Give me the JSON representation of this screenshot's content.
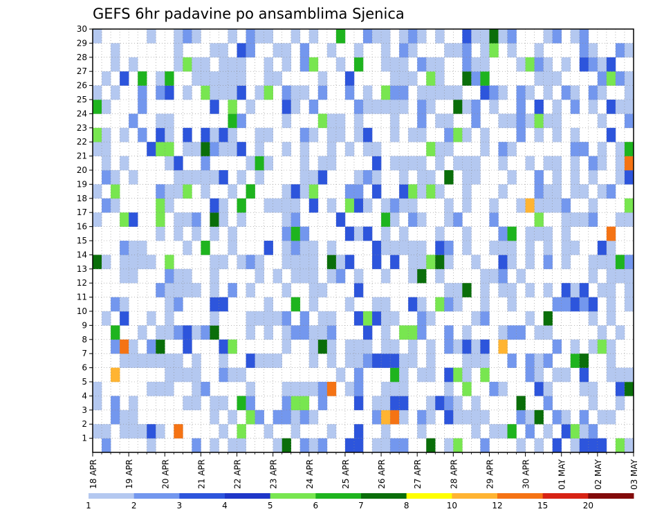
{
  "chart_data": {
    "type": "heatmap",
    "title": "GEFS 6hr padavine po ansamblima Sjenica",
    "x_tick_labels": [
      "18 APR",
      "19 APR",
      "20 APR",
      "21 APR",
      "22 APR",
      "23 APR",
      "24 APR",
      "25 APR",
      "26 APR",
      "27 APR",
      "28 APR",
      "29 APR",
      "30 APR",
      "01 MAY",
      "02 MAY",
      "03 MAY"
    ],
    "x_steps_per_day": 4,
    "y_tick_labels": [
      "1",
      "2",
      "3",
      "4",
      "5",
      "6",
      "7",
      "8",
      "9",
      "10",
      "11",
      "12",
      "13",
      "14",
      "15",
      "16",
      "17",
      "18",
      "19",
      "20",
      "21",
      "22",
      "23",
      "24",
      "25",
      "26",
      "27",
      "28",
      "29",
      "30"
    ],
    "grid": true,
    "legend_position": "bottom",
    "colorbar": {
      "labels": [
        "1",
        "2",
        "3",
        "4",
        "5",
        "6",
        "7",
        "8",
        "10",
        "12",
        "15",
        "20"
      ],
      "colors": [
        "#b4c8f0",
        "#7397ee",
        "#2d55dc",
        "#1e36c8",
        "#78e650",
        "#1eb41e",
        "#0a6e0a",
        "#ffff00",
        "#ffb432",
        "#f57314",
        "#d72314",
        "#820a0a"
      ]
    },
    "cells": [
      {
        "member": 1,
        "values": [
          [
            0,
            2
          ],
          [
            1,
            1
          ],
          [
            3,
            1
          ],
          [
            5,
            1
          ],
          [
            6,
            1
          ],
          [
            7,
            1
          ],
          [
            8,
            1
          ],
          [
            11,
            1
          ],
          [
            12,
            1
          ],
          [
            13,
            1
          ],
          [
            17,
            1
          ],
          [
            18,
            1
          ],
          [
            19,
            1
          ],
          [
            21,
            1
          ],
          [
            22,
            1
          ],
          [
            24,
            1
          ],
          [
            28,
            1
          ],
          [
            29,
            1
          ],
          [
            31,
            1
          ],
          [
            32,
            4
          ],
          [
            33,
            1
          ],
          [
            35,
            1
          ],
          [
            36,
            1
          ],
          [
            37,
            1
          ],
          [
            38,
            2
          ],
          [
            42,
            1
          ],
          [
            43,
            1
          ],
          [
            44,
            1
          ],
          [
            45,
            1
          ],
          [
            46,
            3
          ],
          [
            47,
            1
          ],
          [
            48,
            1
          ],
          [
            50,
            1
          ],
          [
            51,
            1
          ],
          [
            52,
            1
          ],
          [
            53,
            1
          ],
          [
            54,
            1
          ],
          [
            55,
            2
          ],
          [
            56,
            1
          ],
          [
            57,
            1
          ],
          [
            58,
            1
          ],
          [
            59,
            1
          ],
          [
            60,
            1
          ],
          [
            61,
            1
          ],
          [
            62,
            1
          ],
          [
            63,
            1
          ],
          [
            64,
            1
          ],
          [
            66,
            1
          ],
          [
            70,
            1
          ],
          [
            71,
            1
          ],
          [
            72,
            1
          ],
          [
            76,
            1
          ],
          [
            79,
            1
          ],
          [
            80,
            1
          ],
          [
            83,
            1
          ],
          [
            84,
            1
          ],
          [
            87,
            1
          ],
          [
            88,
            1
          ],
          [
            90,
            1
          ],
          [
            91,
            1
          ],
          [
            92,
            3
          ],
          [
            93,
            1
          ],
          [
            95,
            1
          ],
          [
            96,
            1
          ],
          [
            97,
            3
          ],
          [
            98,
            1
          ],
          [
            99,
            2
          ],
          [
            104,
            2
          ],
          [
            105,
            1
          ],
          [
            107,
            1
          ],
          [
            108,
            1
          ],
          [
            112,
            1
          ],
          [
            113,
            1
          ],
          [
            116,
            1
          ],
          [
            118,
            1
          ],
          [
            121,
            1
          ],
          [
            122,
            1
          ],
          [
            123,
            1
          ],
          [
            124,
            3
          ],
          [
            126,
            1
          ],
          [
            128,
            1
          ],
          [
            131,
            1
          ],
          [
            134,
            1
          ],
          [
            137,
            1
          ],
          [
            138,
            1
          ],
          [
            139,
            3
          ],
          [
            143,
            1
          ],
          [
            148,
            1
          ],
          [
            152,
            1
          ],
          [
            154,
            1
          ],
          [
            156,
            1
          ],
          [
            157,
            1
          ],
          [
            161,
            1
          ],
          [
            162,
            1
          ],
          [
            164,
            1
          ],
          [
            167,
            1
          ],
          [
            169,
            1
          ],
          [
            170,
            1
          ],
          [
            175,
            1
          ],
          [
            176,
            1
          ],
          [
            178,
            1
          ],
          [
            181,
            1
          ],
          [
            182,
            1
          ],
          [
            183,
            1
          ],
          [
            184,
            1
          ],
          [
            190,
            1
          ],
          [
            192,
            1
          ],
          [
            195,
            1
          ],
          [
            196,
            1
          ],
          [
            197,
            1
          ],
          [
            198,
            1
          ],
          [
            199,
            1
          ],
          [
            201,
            1
          ],
          [
            202,
            1
          ],
          [
            204,
            1
          ],
          [
            208,
            1
          ],
          [
            211,
            1
          ],
          [
            212,
            1
          ],
          [
            214,
            1
          ],
          [
            215,
            1
          ],
          [
            216,
            1
          ],
          [
            217,
            1
          ],
          [
            219,
            1
          ],
          [
            221,
            1
          ],
          [
            222,
            1
          ],
          [
            223,
            1
          ],
          [
            224,
            1
          ],
          [
            226,
            1
          ],
          [
            227,
            1
          ],
          [
            229,
            1
          ],
          [
            230,
            1
          ],
          [
            231,
            1
          ],
          [
            232,
            1
          ],
          [
            233,
            1
          ],
          [
            236,
            1
          ],
          [
            237,
            1
          ],
          [
            238,
            1
          ],
          [
            240,
            1
          ],
          [
            243,
            1
          ],
          [
            245,
            1
          ],
          [
            246,
            1
          ],
          [
            247,
            1
          ],
          [
            248,
            1
          ],
          [
            249,
            1
          ],
          [
            250,
            1
          ],
          [
            251,
            1
          ],
          [
            252,
            1
          ],
          [
            254,
            1
          ],
          [
            257,
            1
          ],
          [
            258,
            1
          ],
          [
            259,
            1
          ],
          [
            262,
            1
          ],
          [
            263,
            1
          ],
          [
            264,
            1
          ],
          [
            266,
            1
          ],
          [
            267,
            1
          ],
          [
            268,
            1
          ],
          [
            270,
            1
          ],
          [
            271,
            1
          ],
          [
            273,
            1
          ],
          [
            275,
            1
          ],
          [
            278,
            1
          ],
          [
            281,
            1
          ],
          [
            283,
            1
          ],
          [
            284,
            1
          ],
          [
            285,
            1
          ],
          [
            286,
            1
          ],
          [
            287,
            1
          ],
          [
            289,
            1
          ],
          [
            290,
            1
          ],
          [
            293,
            1
          ],
          [
            295,
            1
          ],
          [
            296,
            1
          ],
          [
            297,
            1
          ],
          [
            301,
            1
          ],
          [
            303,
            1
          ],
          [
            305,
            1
          ],
          [
            307,
            1
          ],
          [
            309,
            1
          ],
          [
            310,
            1
          ],
          [
            313,
            1
          ],
          [
            315,
            1
          ],
          [
            318,
            1
          ],
          [
            319,
            1
          ],
          [
            320,
            1
          ],
          [
            322,
            1
          ],
          [
            323,
            1
          ],
          [
            325,
            1
          ],
          [
            326,
            1
          ],
          [
            327,
            1
          ],
          [
            328,
            1
          ],
          [
            330,
            1
          ],
          [
            332,
            1
          ],
          [
            335,
            1
          ],
          [
            337,
            1
          ],
          [
            340,
            1
          ],
          [
            342,
            1
          ],
          [
            343,
            1
          ],
          [
            344,
            1
          ],
          [
            345,
            1
          ],
          [
            346,
            1
          ],
          [
            348,
            1
          ],
          [
            349,
            1
          ],
          [
            350,
            1
          ],
          [
            352,
            1
          ],
          [
            353,
            1
          ],
          [
            355,
            1
          ],
          [
            356,
            1
          ],
          [
            357,
            1
          ],
          [
            358,
            1
          ],
          [
            359,
            1
          ],
          [
            360,
            1
          ],
          [
            361,
            1
          ],
          [
            363,
            1
          ],
          [
            364,
            1
          ]
        ]
      }
    ]
  }
}
